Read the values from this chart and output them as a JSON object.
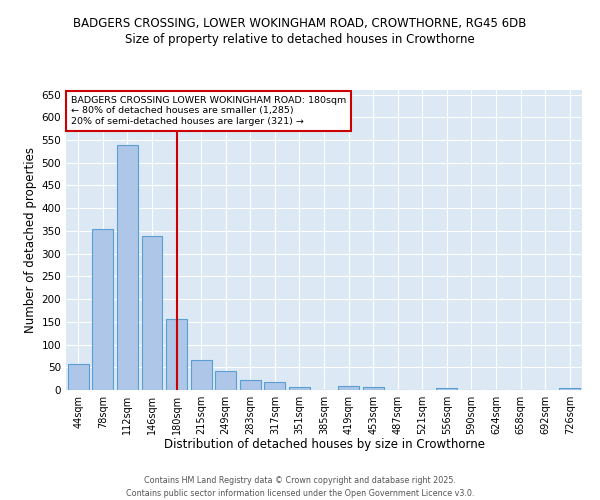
{
  "title_line1": "BADGERS CROSSING, LOWER WOKINGHAM ROAD, CROWTHORNE, RG45 6DB",
  "title_line2": "Size of property relative to detached houses in Crowthorne",
  "xlabel": "Distribution of detached houses by size in Crowthorne",
  "ylabel": "Number of detached properties",
  "categories": [
    "44sqm",
    "78sqm",
    "112sqm",
    "146sqm",
    "180sqm",
    "215sqm",
    "249sqm",
    "283sqm",
    "317sqm",
    "351sqm",
    "385sqm",
    "419sqm",
    "453sqm",
    "487sqm",
    "521sqm",
    "556sqm",
    "590sqm",
    "624sqm",
    "658sqm",
    "692sqm",
    "726sqm"
  ],
  "values": [
    57,
    355,
    540,
    338,
    157,
    67,
    42,
    22,
    17,
    7,
    0,
    8,
    7,
    0,
    0,
    4,
    0,
    0,
    0,
    0,
    4
  ],
  "bar_color": "#aec6e8",
  "bar_edge_color": "#5a9fd4",
  "vline_x": 4.0,
  "vline_color": "#cc0000",
  "annotation_text": "BADGERS CROSSING LOWER WOKINGHAM ROAD: 180sqm\n← 80% of detached houses are smaller (1,285)\n20% of semi-detached houses are larger (321) →",
  "annotation_box_color": "#ffffff",
  "annotation_box_edge": "#cc0000",
  "ylim": [
    0,
    660
  ],
  "yticks": [
    0,
    50,
    100,
    150,
    200,
    250,
    300,
    350,
    400,
    450,
    500,
    550,
    600,
    650
  ],
  "background_color": "#dce9f5",
  "footer_line1": "Contains HM Land Registry data © Crown copyright and database right 2025.",
  "footer_line2": "Contains public sector information licensed under the Open Government Licence v3.0."
}
